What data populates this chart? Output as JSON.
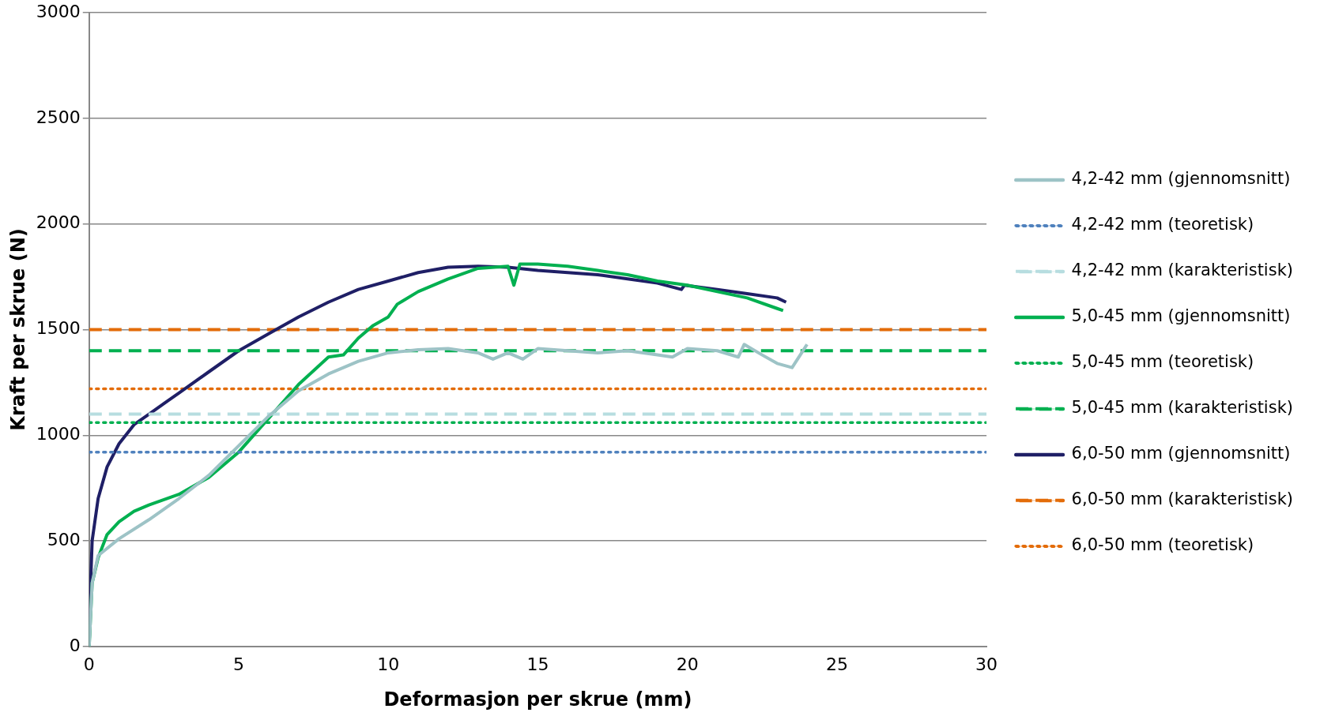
{
  "chart_data": {
    "type": "line",
    "xlabel": "Deformasjon per skrue (mm)",
    "ylabel": "Kraft per skrue (N)",
    "xlim": [
      0,
      30
    ],
    "xticks": [
      0,
      5,
      10,
      15,
      20,
      25,
      30
    ],
    "ylim": [
      0,
      3000
    ],
    "yticks": [
      0,
      500,
      1000,
      1500,
      2000,
      2500,
      3000
    ],
    "grid": "y",
    "legend": "right",
    "marker": "none",
    "series": [
      {
        "name": "4,2-42 mm (gjennomsnitt)",
        "color": "#9dc3c6",
        "line_style": "solid",
        "x": [
          0,
          0.1,
          0.3,
          1,
          2,
          3,
          4,
          5,
          6,
          7,
          8,
          9,
          10,
          11,
          12,
          13,
          13.5,
          14,
          14.5,
          15,
          16,
          17,
          18,
          19,
          19.5,
          20,
          21,
          21.7,
          21.9,
          22.5,
          23,
          23.5,
          24
        ],
        "values": [
          0,
          300,
          430,
          510,
          600,
          700,
          810,
          950,
          1090,
          1210,
          1290,
          1350,
          1390,
          1405,
          1410,
          1390,
          1360,
          1390,
          1360,
          1410,
          1400,
          1390,
          1400,
          1380,
          1370,
          1410,
          1400,
          1370,
          1430,
          1380,
          1340,
          1320,
          1430
        ]
      },
      {
        "name": "4,2-42 mm (teoretisk)",
        "color": "#4f81bd",
        "line_style": "dotted",
        "x": [
          0,
          30
        ],
        "values": [
          920,
          920
        ]
      },
      {
        "name": "4,2-42 mm (karakteristisk)",
        "color": "#b7dde0",
        "line_style": "dashed",
        "x": [
          0,
          30
        ],
        "values": [
          1100,
          1100
        ]
      },
      {
        "name": "5,0-45 mm (gjennomsnitt)",
        "color": "#00b050",
        "line_style": "solid",
        "x": [
          0,
          0.1,
          0.3,
          0.6,
          1,
          1.5,
          2,
          3,
          4,
          5,
          6,
          7,
          8,
          8.5,
          9,
          9.5,
          10,
          10.3,
          11,
          12,
          13,
          14,
          14.2,
          14.4,
          15,
          16,
          17,
          18,
          19,
          20,
          21,
          22,
          23,
          23.2
        ],
        "values": [
          0,
          300,
          420,
          530,
          590,
          640,
          670,
          720,
          800,
          920,
          1080,
          1240,
          1370,
          1380,
          1460,
          1520,
          1560,
          1620,
          1680,
          1740,
          1790,
          1800,
          1710,
          1810,
          1810,
          1800,
          1780,
          1760,
          1730,
          1710,
          1680,
          1650,
          1600,
          1590
        ]
      },
      {
        "name": "5,0-45 mm (teoretisk)",
        "color": "#00b050",
        "line_style": "dotted",
        "x": [
          0,
          30
        ],
        "values": [
          1060,
          1060
        ]
      },
      {
        "name": "5,0-45 mm (karakteristisk)",
        "color": "#00b050",
        "line_style": "dashed",
        "x": [
          0,
          30
        ],
        "values": [
          1400,
          1400
        ]
      },
      {
        "name": "6,0-50 mm (gjennomsnitt)",
        "color": "#1f1f66",
        "line_style": "solid",
        "x": [
          0,
          0.05,
          0.1,
          0.3,
          0.6,
          1,
          1.5,
          2,
          3,
          4,
          5,
          6,
          7,
          8,
          9,
          10,
          11,
          12,
          13,
          14,
          15,
          16,
          17,
          18,
          19,
          19.8,
          19.9,
          21,
          22,
          23,
          23.3
        ],
        "values": [
          0,
          300,
          500,
          700,
          850,
          960,
          1050,
          1100,
          1200,
          1300,
          1400,
          1480,
          1560,
          1630,
          1690,
          1730,
          1770,
          1795,
          1800,
          1795,
          1780,
          1770,
          1760,
          1740,
          1720,
          1690,
          1710,
          1690,
          1670,
          1650,
          1630
        ]
      },
      {
        "name": "6,0-50 mm (karakteristisk)",
        "color": "#e36c09",
        "line_style": "dashed",
        "x": [
          0,
          30
        ],
        "values": [
          1500,
          1500
        ]
      },
      {
        "name": "6,0-50 mm (teoretisk)",
        "color": "#e36c09",
        "line_style": "dotted",
        "x": [
          0,
          30
        ],
        "values": [
          1220,
          1220
        ]
      }
    ]
  }
}
